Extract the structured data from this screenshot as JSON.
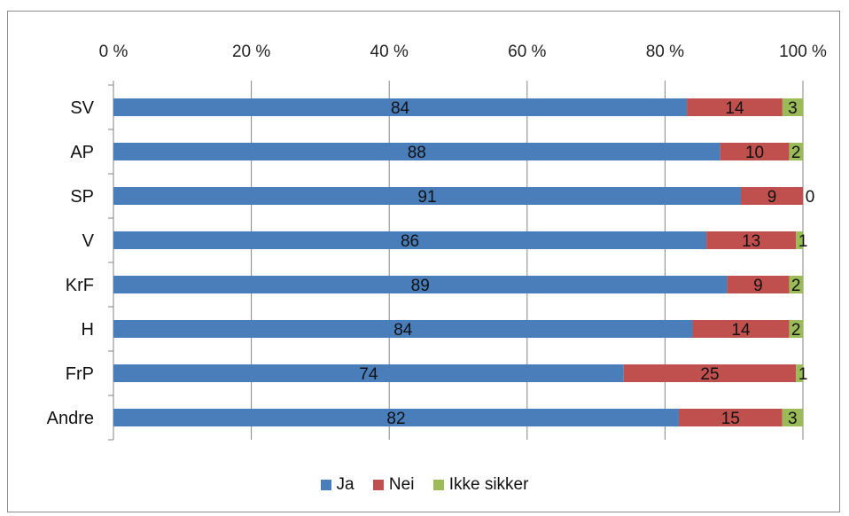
{
  "chart_data": {
    "type": "bar",
    "orientation": "horizontal",
    "stacked": "percent",
    "categories": [
      "SV",
      "AP",
      "SP",
      "V",
      "KrF",
      "H",
      "FrP",
      "Andre"
    ],
    "series": [
      {
        "name": "Ja",
        "color": "#4a7ebb",
        "values": [
          84,
          88,
          91,
          86,
          89,
          84,
          74,
          82
        ]
      },
      {
        "name": "Nei",
        "color": "#c0504d",
        "values": [
          14,
          10,
          9,
          13,
          9,
          14,
          25,
          15
        ]
      },
      {
        "name": "Ikke sikker",
        "color": "#9bbb59",
        "values": [
          3,
          2,
          0,
          1,
          2,
          2,
          1,
          3
        ]
      }
    ],
    "xticks": [
      "0 %",
      "20 %",
      "40 %",
      "60 %",
      "80 %",
      "100 %"
    ],
    "xlim": [
      0,
      100
    ],
    "grid": true,
    "legend_position": "bottom",
    "title": "",
    "xlabel": "",
    "ylabel": ""
  }
}
